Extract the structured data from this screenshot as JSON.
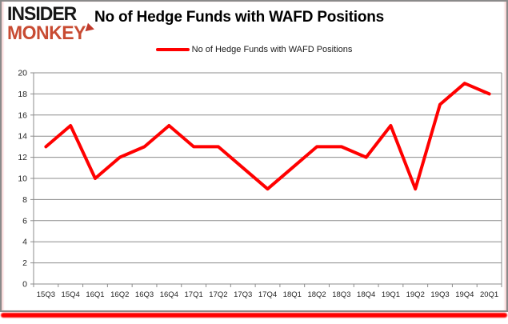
{
  "logo": {
    "line1": "INSIDER",
    "line2": "MONKEY",
    "color_line1": "#171717",
    "color_line2": "#c84b32"
  },
  "header": {
    "title": "No of Hedge Funds with WAFD Positions"
  },
  "legend": {
    "label": "No of Hedge Funds with WAFD Positions",
    "color": "#ff0000"
  },
  "chart_data": {
    "type": "line",
    "title": "No of Hedge Funds with WAFD Positions",
    "categories": [
      "15Q3",
      "15Q4",
      "16Q1",
      "16Q2",
      "16Q3",
      "16Q4",
      "17Q1",
      "17Q2",
      "17Q3",
      "17Q4",
      "18Q1",
      "18Q2",
      "18Q3",
      "18Q4",
      "19Q1",
      "19Q2",
      "19Q3",
      "19Q4",
      "20Q1"
    ],
    "series": [
      {
        "name": "No of Hedge Funds with WAFD Positions",
        "values": [
          13,
          15,
          10,
          12,
          13,
          15,
          13,
          13,
          11,
          9,
          11,
          13,
          13,
          12,
          15,
          9,
          17,
          19,
          18
        ]
      }
    ],
    "xlabel": "",
    "ylabel": "",
    "ylim": [
      0,
      20
    ],
    "ytick_interval": 2,
    "grid": true,
    "legend_position": "top-center",
    "line_color": "#ff0000",
    "gridline_color": "#8c8c8c"
  }
}
